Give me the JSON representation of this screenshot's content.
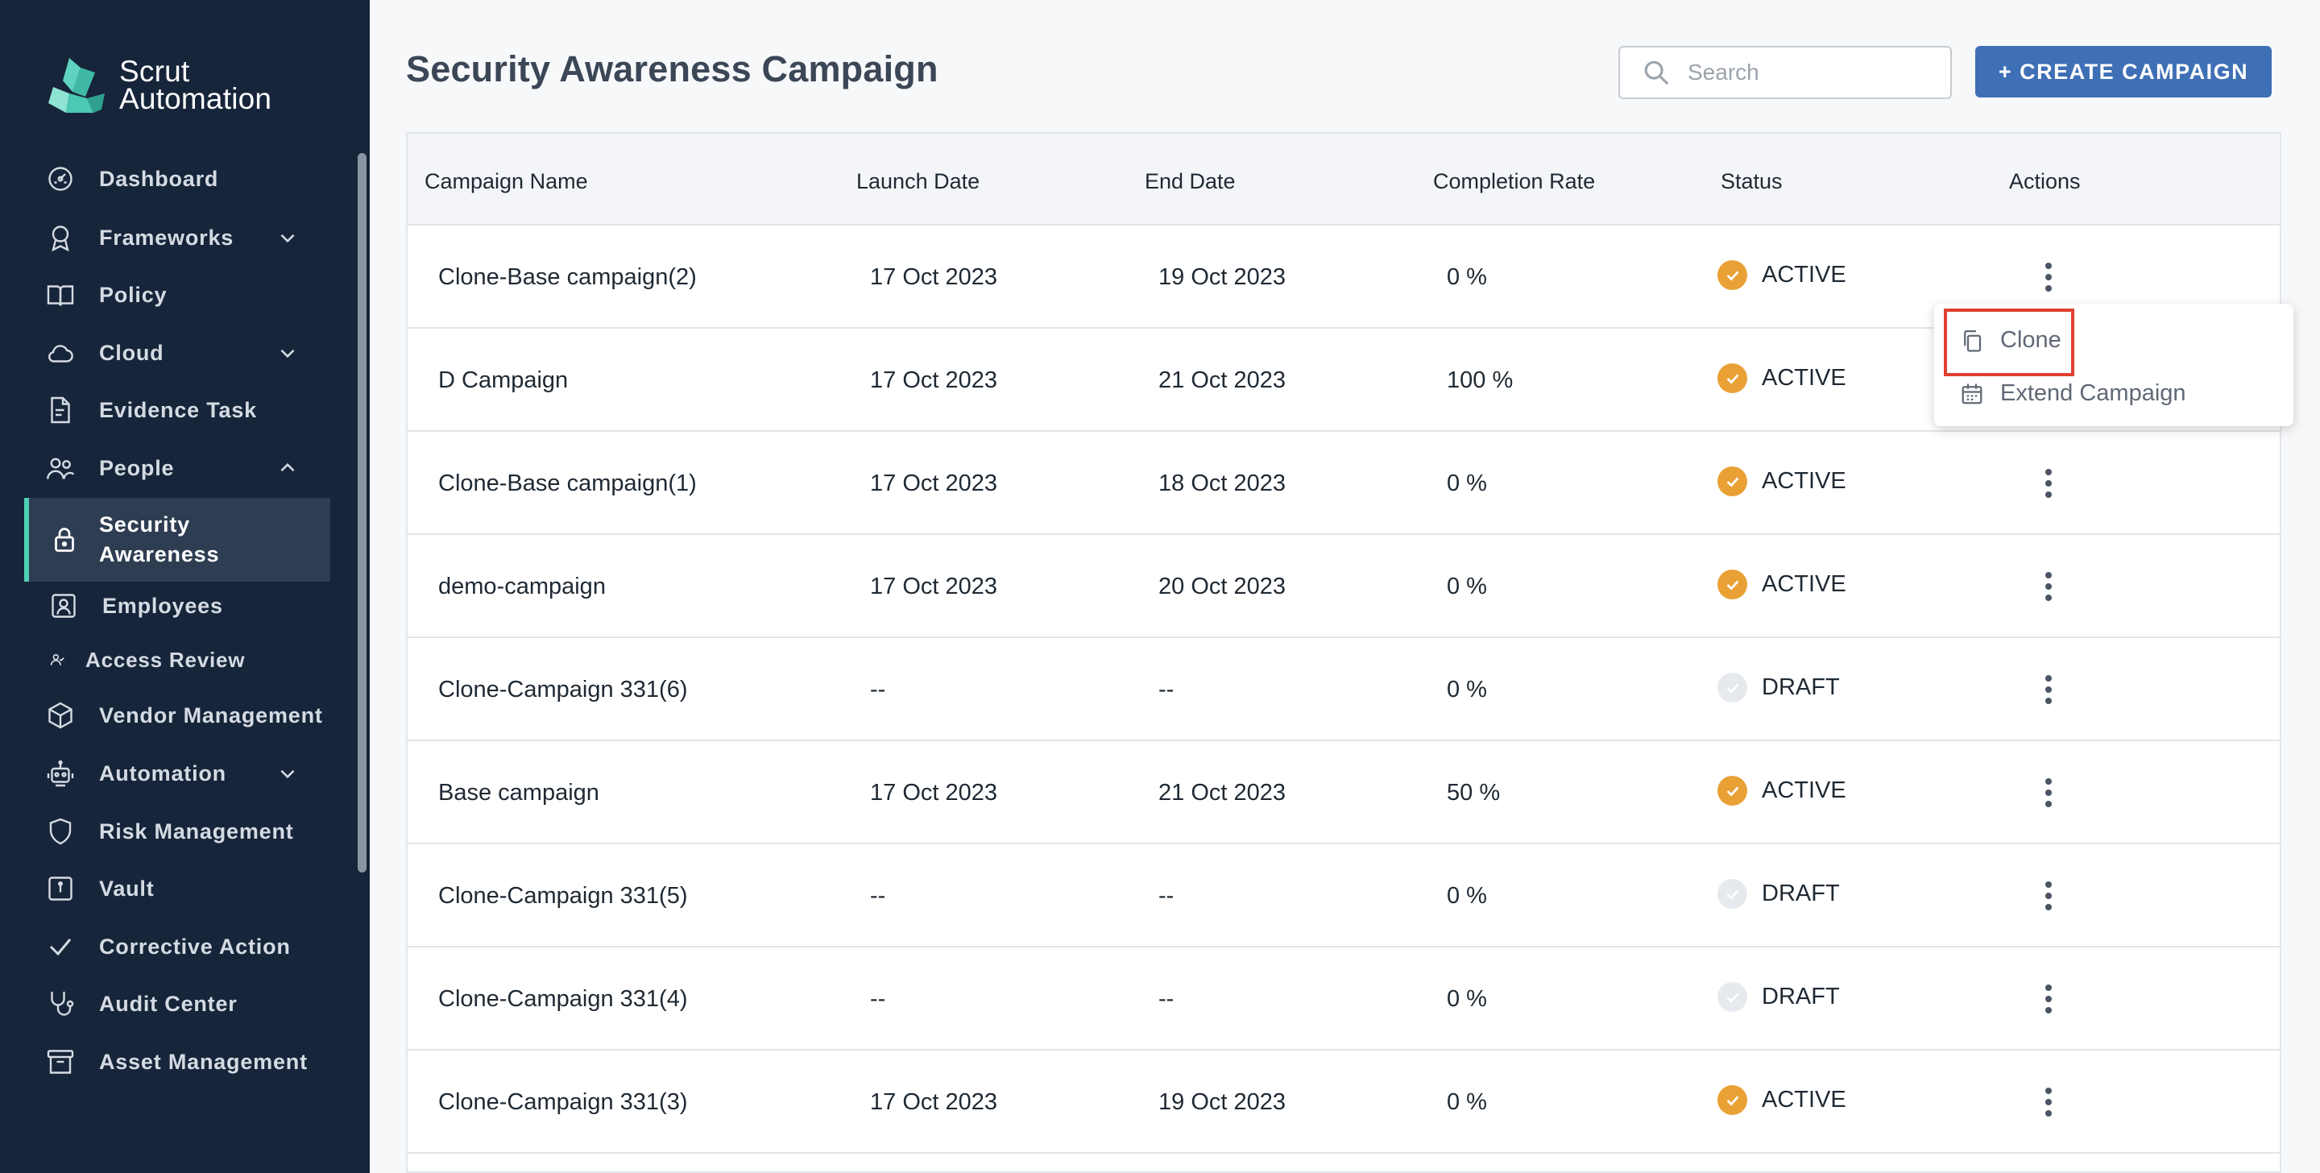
{
  "app": {
    "brand_line1": "Scrut",
    "brand_line2": "Automation"
  },
  "sidebar": {
    "items": [
      {
        "label": "Dashboard",
        "icon": "dashboard-icon"
      },
      {
        "label": "Frameworks",
        "icon": "award-icon",
        "chevron": "down"
      },
      {
        "label": "Policy",
        "icon": "book-icon"
      },
      {
        "label": "Cloud",
        "icon": "cloud-icon",
        "chevron": "down"
      },
      {
        "label": "Evidence Task",
        "icon": "document-icon"
      },
      {
        "label": "People",
        "icon": "people-icon",
        "chevron": "up"
      },
      {
        "label": "Security Awareness",
        "icon": "lock-icon",
        "active": true
      },
      {
        "label": "Employees",
        "icon": "user-card-icon"
      },
      {
        "label": "Access Review",
        "icon": "user-small-icon"
      },
      {
        "label": "Vendor Management",
        "icon": "box-icon"
      },
      {
        "label": "Automation",
        "icon": "robot-icon",
        "chevron": "down"
      },
      {
        "label": "Risk Management",
        "icon": "shield-icon"
      },
      {
        "label": "Vault",
        "icon": "vault-icon"
      },
      {
        "label": "Corrective Action",
        "icon": "check-icon"
      },
      {
        "label": "Audit Center",
        "icon": "stethoscope-icon"
      },
      {
        "label": "Asset Management",
        "icon": "archive-icon"
      }
    ],
    "active_label_line1": "Security",
    "active_label_line2": "Awareness"
  },
  "header": {
    "title": "Security Awareness Campaign",
    "search_placeholder": "Search",
    "create_label": "+ CREATE CAMPAIGN"
  },
  "table": {
    "columns": [
      "Campaign Name",
      "Launch Date",
      "End Date",
      "Completion Rate",
      "Status",
      "Actions"
    ],
    "rows": [
      {
        "name": "Clone-Base campaign(2)",
        "launch": "17 Oct 2023",
        "end": "19 Oct 2023",
        "rate": "0 %",
        "status": "ACTIVE"
      },
      {
        "name": "D Campaign",
        "launch": "17 Oct 2023",
        "end": "21 Oct 2023",
        "rate": "100 %",
        "status": "ACTIVE"
      },
      {
        "name": "Clone-Base campaign(1)",
        "launch": "17 Oct 2023",
        "end": "18 Oct 2023",
        "rate": "0 %",
        "status": "ACTIVE"
      },
      {
        "name": "demo-campaign",
        "launch": "17 Oct 2023",
        "end": "20 Oct 2023",
        "rate": "0 %",
        "status": "ACTIVE"
      },
      {
        "name": "Clone-Campaign 331(6)",
        "launch": "--",
        "end": "--",
        "rate": "0 %",
        "status": "DRAFT"
      },
      {
        "name": "Base campaign",
        "launch": "17 Oct 2023",
        "end": "21 Oct 2023",
        "rate": "50 %",
        "status": "ACTIVE"
      },
      {
        "name": "Clone-Campaign 331(5)",
        "launch": "--",
        "end": "--",
        "rate": "0 %",
        "status": "DRAFT"
      },
      {
        "name": "Clone-Campaign 331(4)",
        "launch": "--",
        "end": "--",
        "rate": "0 %",
        "status": "DRAFT"
      },
      {
        "name": "Clone-Campaign 331(3)",
        "launch": "17 Oct 2023",
        "end": "19 Oct 2023",
        "rate": "0 %",
        "status": "ACTIVE"
      }
    ]
  },
  "menu": {
    "clone_label": "Clone",
    "extend_label": "Extend Campaign"
  },
  "colors": {
    "sidebar_bg": "#17253a",
    "accent": "#4fd1b5",
    "primary_button": "#3f6fb5",
    "status_active": "#e9a135",
    "status_draft": "#e6e9ee",
    "highlight": "#e0402f"
  }
}
